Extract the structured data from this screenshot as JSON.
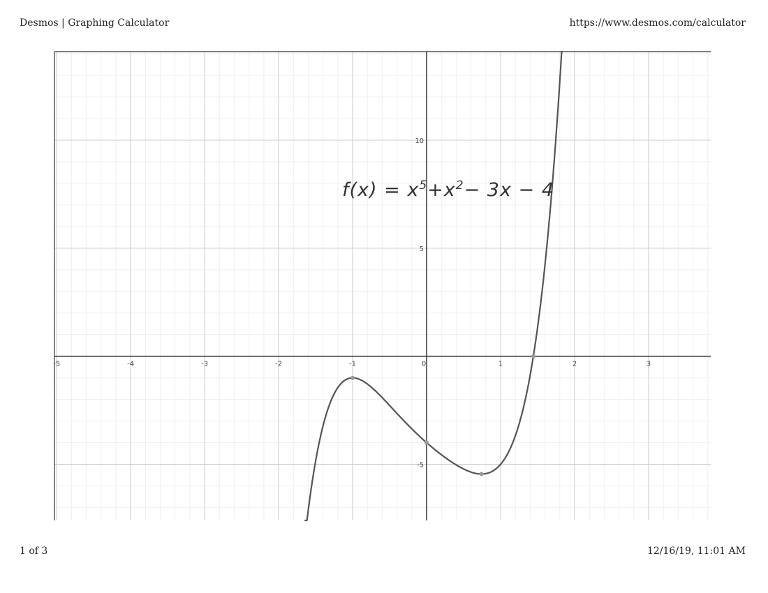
{
  "header": {
    "title": "Desmos | Graphing Calculator",
    "url": "https://www.desmos.com/calculator"
  },
  "footer": {
    "page": "1 of 3",
    "timestamp": "12/16/19, 11:01 AM"
  },
  "annotation": {
    "base": "f(x) = x",
    "exp1": "5",
    "mid": "+x",
    "exp2": "2",
    "tail": "− 3x − 4"
  },
  "chart_data": {
    "type": "line",
    "function": "f(x) = x^5 + x^2 - 3x - 4",
    "xlim": [
      -5.03,
      3.84
    ],
    "ylim": [
      -7.6,
      14.1
    ],
    "grid": true,
    "x_ticks": [
      -5,
      -4,
      -3,
      -2,
      -1,
      0,
      1,
      2,
      3
    ],
    "y_ticks": [
      -5,
      5,
      10
    ],
    "x_tick_labels": [
      "-5",
      "-4",
      "-3",
      "-2",
      "-1",
      "0",
      "1",
      "2",
      "3"
    ],
    "y_tick_labels": [
      "-5",
      "5",
      "10"
    ],
    "marked_points": [
      {
        "x": -1,
        "y": -1
      },
      {
        "x": 0,
        "y": -4
      },
      {
        "x": 0.742,
        "y": -5.45
      },
      {
        "x": 1.443,
        "y": 0
      }
    ],
    "colors": {
      "curve": "#555555",
      "grid": "#cccccc",
      "axis": "#333333",
      "point": "#999999"
    }
  }
}
